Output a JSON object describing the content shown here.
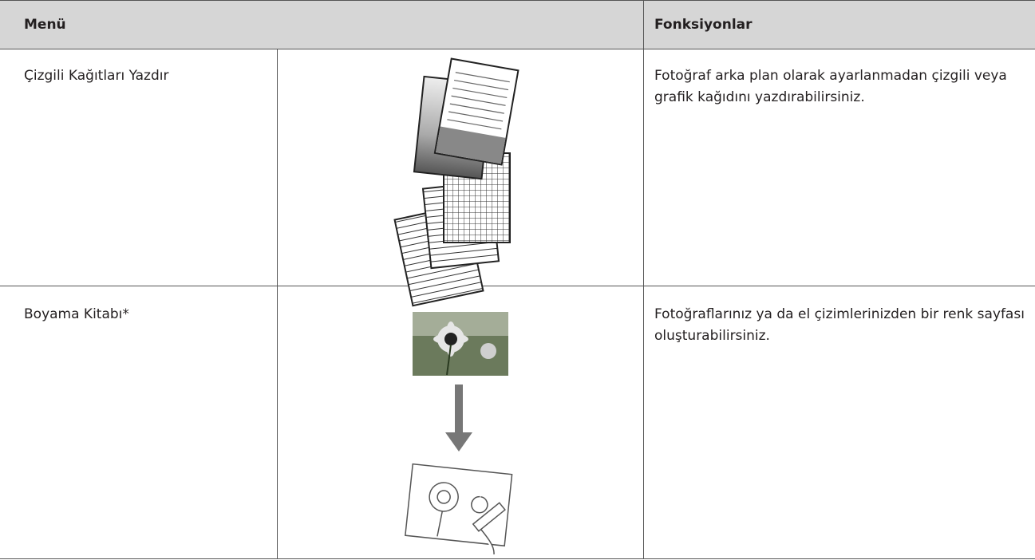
{
  "table": {
    "header": [
      "Menü",
      "Fonksiyonlar"
    ],
    "rows": [
      [
        "Çizgili Kağıtları Yazdır",
        "Fotoğraf arka plan olarak ayarlanmadan çizgili veya grafik kağıdını yazdırabilirsiniz."
      ],
      [
        "Boyama Kitabı*",
        "Fotoğraflarınız ya da el çizimlerinizden bir renk sayfası oluşturabilirsiniz."
      ]
    ]
  }
}
